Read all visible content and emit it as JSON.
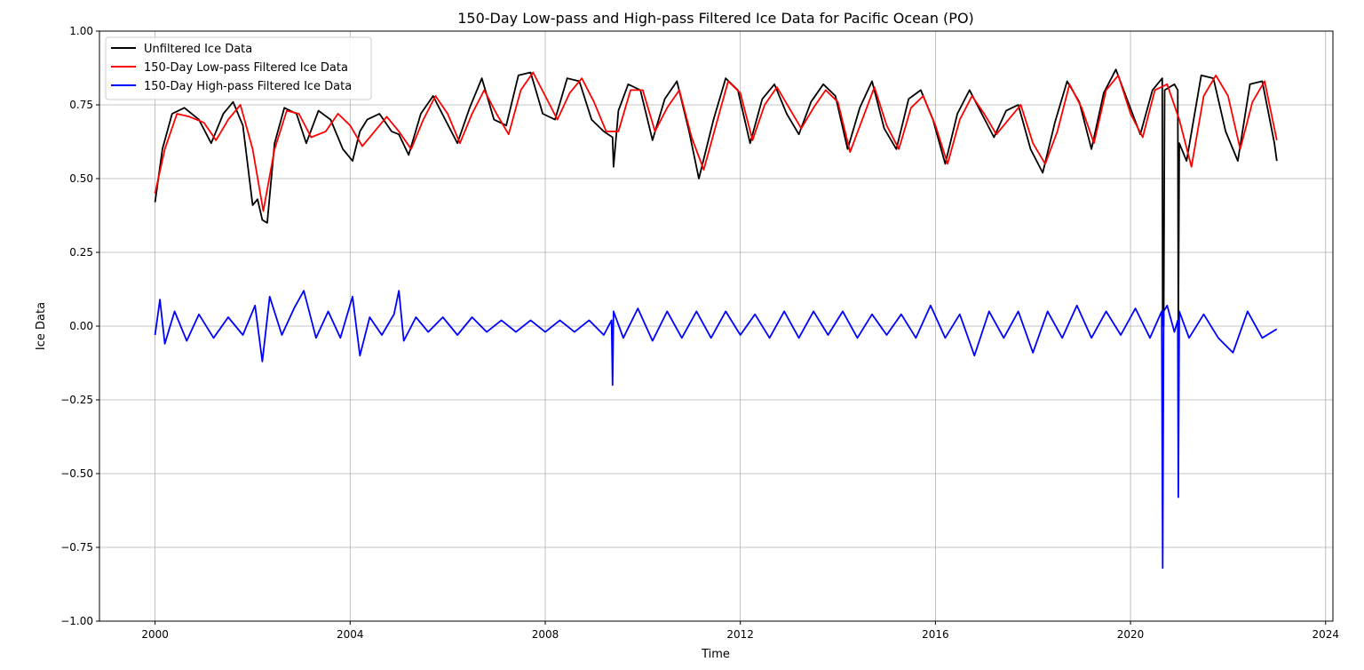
{
  "chart_data": {
    "type": "line",
    "title": "150-Day Low-pass and High-pass Filtered Ice Data for Pacific Ocean (PO)",
    "xlabel": "Time",
    "ylabel": "Ice Data",
    "xlim": [
      1998.86,
      2024.15
    ],
    "ylim": [
      -1.0,
      1.0
    ],
    "x_ticks": [
      2000,
      2004,
      2008,
      2012,
      2016,
      2020,
      2024
    ],
    "y_ticks": [
      -1.0,
      -0.75,
      -0.5,
      -0.25,
      0.0,
      0.25,
      0.5,
      0.75,
      1.0
    ],
    "y_tick_labels": [
      "−1.00",
      "−0.75",
      "−0.50",
      "−0.25",
      "0.00",
      "0.25",
      "0.50",
      "0.75",
      "1.00"
    ],
    "grid": true,
    "legend_position": "top-left",
    "series": [
      {
        "name": "Unfiltered Ice Data",
        "color": "#000000",
        "x": [
          2000.0,
          2000.15,
          2000.35,
          2000.6,
          2000.9,
          2001.15,
          2001.4,
          2001.6,
          2001.8,
          2002.0,
          2002.1,
          2002.2,
          2002.3,
          2002.45,
          2002.65,
          2002.9,
          2003.1,
          2003.35,
          2003.6,
          2003.85,
          2004.05,
          2004.2,
          2004.35,
          2004.6,
          2004.85,
          2005.0,
          2005.2,
          2005.45,
          2005.7,
          2005.95,
          2006.2,
          2006.45,
          2006.7,
          2006.95,
          2007.2,
          2007.45,
          2007.7,
          2007.95,
          2008.2,
          2008.45,
          2008.7,
          2008.95,
          2009.2,
          2009.38,
          2009.4,
          2009.5,
          2009.7,
          2009.95,
          2010.2,
          2010.45,
          2010.7,
          2010.95,
          2011.15,
          2011.45,
          2011.7,
          2011.95,
          2012.2,
          2012.45,
          2012.7,
          2012.95,
          2013.2,
          2013.45,
          2013.7,
          2013.95,
          2014.2,
          2014.45,
          2014.7,
          2014.95,
          2015.2,
          2015.45,
          2015.7,
          2015.95,
          2016.2,
          2016.45,
          2016.7,
          2016.95,
          2017.2,
          2017.45,
          2017.7,
          2017.95,
          2018.2,
          2018.45,
          2018.7,
          2018.95,
          2019.2,
          2019.45,
          2019.7,
          2019.95,
          2020.2,
          2020.45,
          2020.65,
          2020.66,
          2020.68,
          2020.7,
          2020.9,
          2020.97,
          2020.98,
          2021.0,
          2021.15,
          2021.45,
          2021.7,
          2021.95,
          2022.2,
          2022.45,
          2022.7,
          2022.95,
          2023.0
        ],
        "y": [
          0.42,
          0.6,
          0.72,
          0.74,
          0.7,
          0.62,
          0.72,
          0.76,
          0.68,
          0.41,
          0.43,
          0.36,
          0.35,
          0.62,
          0.74,
          0.72,
          0.62,
          0.73,
          0.7,
          0.6,
          0.56,
          0.66,
          0.7,
          0.72,
          0.66,
          0.65,
          0.58,
          0.72,
          0.78,
          0.7,
          0.62,
          0.74,
          0.84,
          0.7,
          0.68,
          0.85,
          0.86,
          0.72,
          0.7,
          0.84,
          0.83,
          0.7,
          0.66,
          0.64,
          0.54,
          0.73,
          0.82,
          0.8,
          0.63,
          0.77,
          0.83,
          0.66,
          0.5,
          0.7,
          0.84,
          0.8,
          0.62,
          0.77,
          0.82,
          0.72,
          0.65,
          0.76,
          0.82,
          0.78,
          0.6,
          0.74,
          0.83,
          0.67,
          0.6,
          0.77,
          0.8,
          0.7,
          0.55,
          0.72,
          0.8,
          0.72,
          0.64,
          0.73,
          0.75,
          0.6,
          0.52,
          0.69,
          0.83,
          0.76,
          0.6,
          0.79,
          0.87,
          0.76,
          0.65,
          0.8,
          0.84,
          0.0,
          0.0,
          0.8,
          0.82,
          0.8,
          0.0,
          0.62,
          0.56,
          0.85,
          0.84,
          0.66,
          0.56,
          0.82,
          0.83,
          0.62,
          0.56
        ]
      },
      {
        "name": "150-Day Low-pass Filtered Ice Data",
        "color": "#ff0000",
        "x": [
          2000.0,
          2000.2,
          2000.45,
          2000.7,
          2001.0,
          2001.25,
          2001.5,
          2001.75,
          2002.0,
          2002.22,
          2002.45,
          2002.7,
          2002.95,
          2003.2,
          2003.5,
          2003.75,
          2004.0,
          2004.25,
          2004.5,
          2004.75,
          2005.0,
          2005.25,
          2005.5,
          2005.75,
          2006.0,
          2006.25,
          2006.5,
          2006.75,
          2007.0,
          2007.25,
          2007.5,
          2007.75,
          2008.0,
          2008.25,
          2008.5,
          2008.75,
          2009.0,
          2009.25,
          2009.5,
          2009.75,
          2010.0,
          2010.25,
          2010.5,
          2010.75,
          2011.0,
          2011.25,
          2011.5,
          2011.75,
          2012.0,
          2012.25,
          2012.5,
          2012.75,
          2013.0,
          2013.25,
          2013.5,
          2013.75,
          2014.0,
          2014.25,
          2014.5,
          2014.75,
          2015.0,
          2015.25,
          2015.5,
          2015.75,
          2016.0,
          2016.25,
          2016.5,
          2016.75,
          2017.0,
          2017.25,
          2017.5,
          2017.75,
          2018.0,
          2018.25,
          2018.5,
          2018.75,
          2019.0,
          2019.25,
          2019.5,
          2019.75,
          2020.0,
          2020.25,
          2020.5,
          2020.75,
          2021.0,
          2021.25,
          2021.5,
          2021.75,
          2022.0,
          2022.25,
          2022.5,
          2022.75,
          2023.0
        ],
        "y": [
          0.45,
          0.6,
          0.72,
          0.71,
          0.69,
          0.63,
          0.7,
          0.75,
          0.6,
          0.39,
          0.6,
          0.73,
          0.72,
          0.64,
          0.66,
          0.72,
          0.68,
          0.61,
          0.66,
          0.71,
          0.66,
          0.6,
          0.7,
          0.78,
          0.72,
          0.62,
          0.72,
          0.8,
          0.72,
          0.65,
          0.8,
          0.86,
          0.78,
          0.7,
          0.79,
          0.84,
          0.76,
          0.66,
          0.66,
          0.8,
          0.8,
          0.66,
          0.74,
          0.8,
          0.64,
          0.53,
          0.68,
          0.83,
          0.79,
          0.63,
          0.75,
          0.81,
          0.74,
          0.67,
          0.74,
          0.8,
          0.76,
          0.59,
          0.7,
          0.81,
          0.68,
          0.6,
          0.74,
          0.78,
          0.68,
          0.55,
          0.7,
          0.78,
          0.72,
          0.65,
          0.7,
          0.75,
          0.62,
          0.55,
          0.66,
          0.82,
          0.74,
          0.62,
          0.8,
          0.85,
          0.72,
          0.64,
          0.8,
          0.82,
          0.7,
          0.54,
          0.78,
          0.85,
          0.78,
          0.6,
          0.76,
          0.83,
          0.63
        ]
      },
      {
        "name": "150-Day High-pass Filtered Ice Data",
        "color": "#0000ff",
        "x": [
          2000.0,
          2000.1,
          2000.2,
          2000.4,
          2000.65,
          2000.9,
          2001.2,
          2001.5,
          2001.8,
          2002.05,
          2002.2,
          2002.35,
          2002.6,
          2002.85,
          2003.05,
          2003.3,
          2003.55,
          2003.8,
          2004.05,
          2004.2,
          2004.4,
          2004.65,
          2004.9,
          2005.0,
          2005.1,
          2005.35,
          2005.6,
          2005.9,
          2006.2,
          2006.5,
          2006.8,
          2007.1,
          2007.4,
          2007.7,
          2008.0,
          2008.3,
          2008.6,
          2008.9,
          2009.2,
          2009.36,
          2009.38,
          2009.4,
          2009.6,
          2009.9,
          2010.2,
          2010.5,
          2010.8,
          2011.1,
          2011.4,
          2011.7,
          2012.0,
          2012.3,
          2012.6,
          2012.9,
          2013.2,
          2013.5,
          2013.8,
          2014.1,
          2014.4,
          2014.7,
          2015.0,
          2015.3,
          2015.6,
          2015.9,
          2016.2,
          2016.5,
          2016.8,
          2017.1,
          2017.4,
          2017.7,
          2018.0,
          2018.3,
          2018.6,
          2018.9,
          2019.2,
          2019.5,
          2019.8,
          2020.1,
          2020.4,
          2020.64,
          2020.66,
          2020.68,
          2020.75,
          2020.9,
          2020.97,
          2020.98,
          2021.0,
          2021.2,
          2021.5,
          2021.8,
          2022.1,
          2022.4,
          2022.7,
          2023.0
        ],
        "y": [
          -0.03,
          0.09,
          -0.06,
          0.05,
          -0.05,
          0.04,
          -0.04,
          0.03,
          -0.03,
          0.07,
          -0.12,
          0.1,
          -0.03,
          0.06,
          0.12,
          -0.04,
          0.05,
          -0.04,
          0.1,
          -0.1,
          0.03,
          -0.03,
          0.04,
          0.12,
          -0.05,
          0.03,
          -0.02,
          0.03,
          -0.03,
          0.03,
          -0.02,
          0.02,
          -0.02,
          0.02,
          -0.02,
          0.02,
          -0.02,
          0.02,
          -0.03,
          0.02,
          -0.2,
          0.05,
          -0.04,
          0.06,
          -0.05,
          0.05,
          -0.04,
          0.05,
          -0.04,
          0.05,
          -0.03,
          0.04,
          -0.04,
          0.05,
          -0.04,
          0.05,
          -0.03,
          0.05,
          -0.04,
          0.04,
          -0.03,
          0.04,
          -0.04,
          0.07,
          -0.04,
          0.04,
          -0.1,
          0.05,
          -0.04,
          0.05,
          -0.09,
          0.05,
          -0.04,
          0.07,
          -0.04,
          0.05,
          -0.03,
          0.06,
          -0.04,
          0.05,
          -0.82,
          0.05,
          0.07,
          -0.02,
          0.02,
          -0.58,
          0.05,
          -0.04,
          0.04,
          -0.04,
          -0.09,
          0.05,
          -0.04,
          -0.01
        ]
      }
    ]
  }
}
